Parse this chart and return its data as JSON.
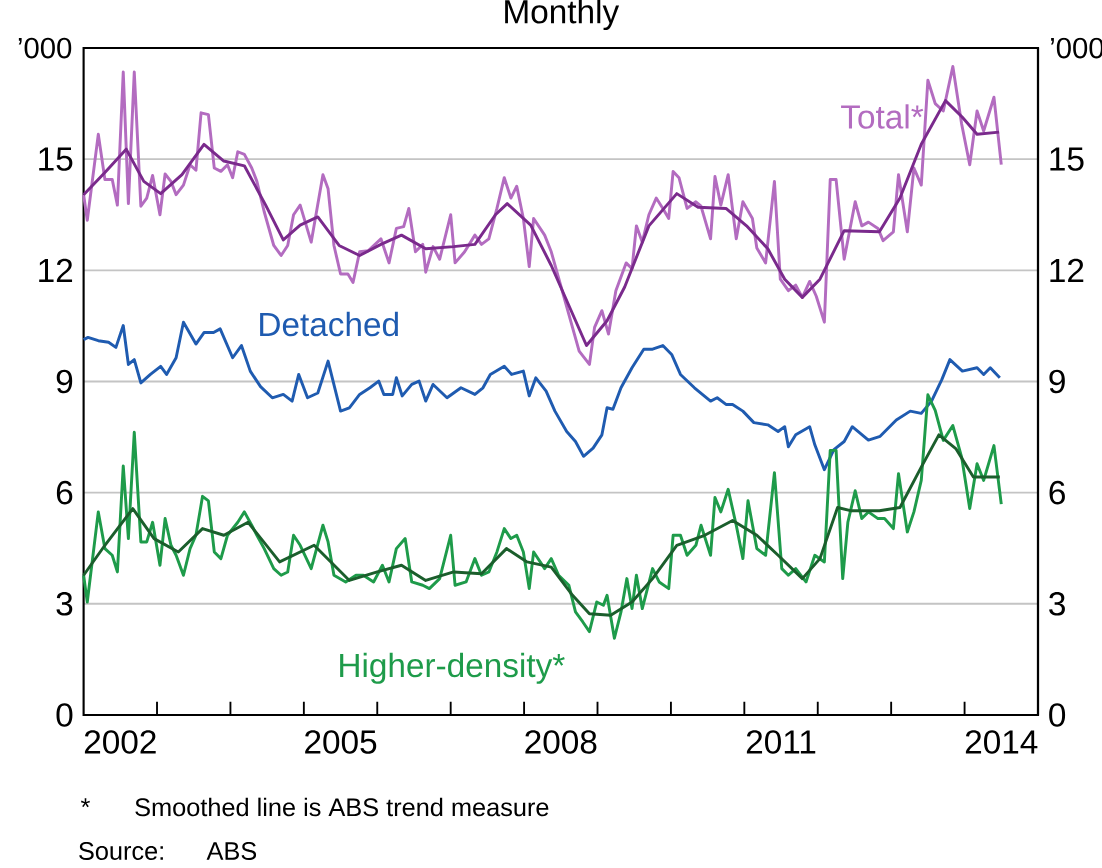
{
  "chart_data": {
    "type": "line",
    "title": "Monthly",
    "ylabel": "’000",
    "y2label": "’000",
    "xlim": [
      2002,
      2015
    ],
    "ylim": [
      0,
      18
    ],
    "y2lim": [
      0,
      18
    ],
    "xticks": [
      {
        "value": 2002.5,
        "label": "2002"
      },
      {
        "value": 2003,
        "label": null
      },
      {
        "value": 2004,
        "label": null
      },
      {
        "value": 2005,
        "label": null
      },
      {
        "value": 2005.5,
        "label": "2005"
      },
      {
        "value": 2006,
        "label": null
      },
      {
        "value": 2007,
        "label": null
      },
      {
        "value": 2008,
        "label": null
      },
      {
        "value": 2008.5,
        "label": "2008"
      },
      {
        "value": 2009,
        "label": null
      },
      {
        "value": 2010,
        "label": null
      },
      {
        "value": 2011,
        "label": null
      },
      {
        "value": 2011.5,
        "label": "2011"
      },
      {
        "value": 2012,
        "label": null
      },
      {
        "value": 2013,
        "label": null
      },
      {
        "value": 2014,
        "label": null
      },
      {
        "value": 2014.5,
        "label": "2014"
      }
    ],
    "yticks": [
      0,
      3,
      6,
      9,
      12,
      15
    ],
    "y2ticks": [
      0,
      3,
      6,
      9,
      12,
      15
    ],
    "grid": "y",
    "series": [
      {
        "name": "Total*",
        "color": "#b36cc0",
        "x": [
          2002.0,
          2002.05,
          2002.2,
          2002.29,
          2002.39,
          2002.46,
          2002.54,
          2002.61,
          2002.69,
          2002.78,
          2002.86,
          2002.94,
          2003.04,
          2003.11,
          2003.19,
          2003.26,
          2003.36,
          2003.45,
          2003.53,
          2003.6,
          2003.7,
          2003.78,
          2003.87,
          2003.96,
          2004.03,
          2004.1,
          2004.19,
          2004.29,
          2004.36,
          2004.46,
          2004.59,
          2004.69,
          2004.78,
          2004.86,
          2004.95,
          2005.1,
          2005.26,
          2005.33,
          2005.41,
          2005.5,
          2005.6,
          2005.67,
          2005.76,
          2005.88,
          2006.05,
          2006.16,
          2006.26,
          2006.36,
          2006.43,
          2006.52,
          2006.62,
          2006.66,
          2006.76,
          2006.85,
          2007.0,
          2007.06,
          2007.19,
          2007.33,
          2007.42,
          2007.52,
          2007.63,
          2007.73,
          2007.82,
          2007.9,
          2007.99,
          2008.07,
          2008.13,
          2008.28,
          2008.37,
          2008.75,
          2008.89,
          2008.96,
          2009.06,
          2009.15,
          2009.25,
          2009.39,
          2009.47,
          2009.53,
          2009.61,
          2009.7,
          2009.8,
          2009.89,
          2009.97,
          2010.03,
          2010.11,
          2010.22,
          2010.34,
          2010.41,
          2010.54,
          2010.6,
          2010.68,
          2010.78,
          2010.89,
          2010.98,
          2011.11,
          2011.17,
          2011.29,
          2011.41,
          2011.49,
          2011.6,
          2011.7,
          2011.79,
          2011.89,
          2011.98,
          2012.09,
          2012.17,
          2012.25,
          2012.36,
          2012.51,
          2012.6,
          2012.69,
          2012.82,
          2012.89,
          2013.03,
          2013.1,
          2013.22,
          2013.31,
          2013.41,
          2013.5,
          2013.6,
          2013.71,
          2013.84,
          2013.96,
          2014.07,
          2014.17,
          2014.26,
          2014.4,
          2014.5
        ],
        "values": [
          14.04,
          13.35,
          15.67,
          14.45,
          14.45,
          13.76,
          17.35,
          13.8,
          17.35,
          13.73,
          13.95,
          14.56,
          13.5,
          14.6,
          14.4,
          14.04,
          14.3,
          14.85,
          14.7,
          16.25,
          16.2,
          14.76,
          14.67,
          14.85,
          14.5,
          15.2,
          15.13,
          14.76,
          14.4,
          13.58,
          12.67,
          12.4,
          12.67,
          13.5,
          13.76,
          12.76,
          14.58,
          14.2,
          12.67,
          11.9,
          11.9,
          11.67,
          12.5,
          12.53,
          12.85,
          12.2,
          13.13,
          13.18,
          13.67,
          12.5,
          12.7,
          11.95,
          12.64,
          12.3,
          13.5,
          12.2,
          12.5,
          12.95,
          12.7,
          12.85,
          13.67,
          14.5,
          13.95,
          14.27,
          13.4,
          12.1,
          13.4,
          12.95,
          12.5,
          9.82,
          9.46,
          10.46,
          10.91,
          10.28,
          11.45,
          12.2,
          12.04,
          13.2,
          12.76,
          13.5,
          13.95,
          13.67,
          13.4,
          14.67,
          14.5,
          13.67,
          13.85,
          13.73,
          12.85,
          14.53,
          13.76,
          14.58,
          12.85,
          13.85,
          13.4,
          12.6,
          12.2,
          14.4,
          11.76,
          11.45,
          11.6,
          11.27,
          11.7,
          11.3,
          10.6,
          14.45,
          14.45,
          12.3,
          13.85,
          13.2,
          13.3,
          13.13,
          12.8,
          13.04,
          14.58,
          13.04,
          14.76,
          14.3,
          17.13,
          16.5,
          16.3,
          17.5,
          15.95,
          14.85,
          16.3,
          15.76,
          16.67,
          14.85
        ]
      },
      {
        "color": "#7a2a8c",
        "x": [
          2002.0,
          2002.29,
          2002.58,
          2002.82,
          2003.05,
          2003.34,
          2003.64,
          2003.91,
          2004.19,
          2004.48,
          2004.72,
          2004.95,
          2005.19,
          2005.48,
          2005.76,
          2006.05,
          2006.33,
          2006.66,
          2007.04,
          2007.33,
          2007.61,
          2007.77,
          2008.09,
          2008.37,
          2008.85,
          2009.13,
          2009.37,
          2009.7,
          2010.08,
          2010.37,
          2010.75,
          2011.03,
          2011.32,
          2011.55,
          2011.79,
          2012.03,
          2012.36,
          2012.84,
          2013.12,
          2013.41,
          2013.74,
          2013.97,
          2014.17,
          2014.47
        ],
        "values": [
          14.04,
          14.64,
          15.27,
          14.4,
          14.07,
          14.58,
          15.4,
          14.95,
          14.82,
          13.76,
          12.82,
          13.22,
          13.44,
          12.67,
          12.4,
          12.7,
          12.95,
          12.58,
          12.64,
          12.7,
          13.5,
          13.8,
          13.22,
          12.13,
          9.97,
          10.64,
          11.55,
          13.2,
          14.07,
          13.7,
          13.67,
          13.2,
          12.58,
          11.76,
          11.27,
          11.76,
          13.07,
          13.04,
          13.95,
          15.4,
          16.58,
          16.13,
          15.67,
          15.73
        ]
      },
      {
        "name": "Detached",
        "color": "#1f5bb0",
        "x": [
          2002.0,
          2002.06,
          2002.2,
          2002.34,
          2002.44,
          2002.54,
          2002.61,
          2002.69,
          2002.78,
          2002.91,
          2003.05,
          2003.13,
          2003.26,
          2003.36,
          2003.53,
          2003.64,
          2003.77,
          2003.86,
          2004.03,
          2004.15,
          2004.27,
          2004.41,
          2004.57,
          2004.72,
          2004.84,
          2004.93,
          2005.05,
          2005.19,
          2005.33,
          2005.5,
          2005.62,
          2005.76,
          2005.9,
          2006.02,
          2006.09,
          2006.21,
          2006.26,
          2006.34,
          2006.47,
          2006.57,
          2006.66,
          2006.76,
          2006.95,
          2007.14,
          2007.33,
          2007.44,
          2007.54,
          2007.73,
          2007.83,
          2007.99,
          2008.07,
          2008.16,
          2008.3,
          2008.42,
          2008.58,
          2008.7,
          2008.81,
          2008.94,
          2009.06,
          2009.13,
          2009.21,
          2009.32,
          2009.47,
          2009.63,
          2009.75,
          2009.89,
          2010.01,
          2010.13,
          2010.32,
          2010.54,
          2010.63,
          2010.75,
          2010.84,
          2010.98,
          2011.13,
          2011.32,
          2011.46,
          2011.55,
          2011.6,
          2011.7,
          2011.89,
          2011.96,
          2012.09,
          2012.22,
          2012.36,
          2012.47,
          2012.69,
          2012.85,
          2013.07,
          2013.26,
          2013.41,
          2013.55,
          2013.69,
          2013.8,
          2013.97,
          2014.17,
          2014.26,
          2014.35,
          2014.48
        ],
        "values": [
          10.13,
          10.19,
          10.1,
          10.06,
          9.92,
          10.51,
          9.46,
          9.59,
          8.96,
          9.19,
          9.41,
          9.19,
          9.64,
          10.6,
          10.01,
          10.32,
          10.32,
          10.42,
          9.64,
          9.97,
          9.28,
          8.86,
          8.56,
          8.65,
          8.47,
          9.19,
          8.56,
          8.69,
          9.55,
          8.2,
          8.29,
          8.65,
          8.83,
          9.01,
          8.65,
          8.65,
          9.1,
          8.61,
          8.92,
          9.01,
          8.47,
          8.92,
          8.56,
          8.83,
          8.65,
          8.83,
          9.19,
          9.41,
          9.19,
          9.28,
          8.61,
          9.1,
          8.74,
          8.2,
          7.65,
          7.38,
          6.98,
          7.2,
          7.56,
          8.29,
          8.25,
          8.83,
          9.37,
          9.87,
          9.87,
          9.97,
          9.73,
          9.19,
          8.83,
          8.47,
          8.56,
          8.38,
          8.38,
          8.2,
          7.89,
          7.83,
          7.65,
          7.78,
          7.24,
          7.56,
          7.78,
          7.29,
          6.62,
          7.16,
          7.38,
          7.78,
          7.42,
          7.52,
          7.96,
          8.2,
          8.14,
          8.47,
          9.05,
          9.59,
          9.28,
          9.37,
          9.19,
          9.37,
          9.1
        ]
      },
      {
        "name": "Higher-density*",
        "color": "#1e9b4a",
        "x": [
          2002.0,
          2002.05,
          2002.2,
          2002.29,
          2002.39,
          2002.46,
          2002.54,
          2002.61,
          2002.69,
          2002.78,
          2002.86,
          2002.94,
          2003.04,
          2003.11,
          2003.19,
          2003.26,
          2003.36,
          2003.45,
          2003.53,
          2003.62,
          2003.7,
          2003.78,
          2003.87,
          2003.96,
          2004.1,
          2004.19,
          2004.29,
          2004.36,
          2004.46,
          2004.59,
          2004.69,
          2004.78,
          2004.86,
          2004.95,
          2005.1,
          2005.26,
          2005.33,
          2005.41,
          2005.57,
          2005.71,
          2005.81,
          2005.95,
          2006.07,
          2006.16,
          2006.26,
          2006.38,
          2006.47,
          2006.62,
          2006.71,
          2006.85,
          2007.0,
          2007.06,
          2007.21,
          2007.33,
          2007.42,
          2007.52,
          2007.63,
          2007.73,
          2007.82,
          2007.9,
          2007.99,
          2008.07,
          2008.13,
          2008.28,
          2008.37,
          2008.47,
          2008.61,
          2008.7,
          2008.8,
          2008.89,
          2008.99,
          2009.08,
          2009.13,
          2009.23,
          2009.32,
          2009.4,
          2009.47,
          2009.53,
          2009.61,
          2009.75,
          2009.84,
          2009.97,
          2010.03,
          2010.13,
          2010.22,
          2010.34,
          2010.41,
          2010.54,
          2010.6,
          2010.68,
          2010.78,
          2010.89,
          2010.98,
          2011.05,
          2011.17,
          2011.29,
          2011.41,
          2011.51,
          2011.6,
          2011.7,
          2011.84,
          2011.96,
          2012.09,
          2012.17,
          2012.25,
          2012.34,
          2012.41,
          2012.51,
          2012.6,
          2012.69,
          2012.82,
          2012.91,
          2013.03,
          2013.1,
          2013.22,
          2013.31,
          2013.41,
          2013.5,
          2013.6,
          2013.71,
          2013.84,
          2013.96,
          2014.07,
          2014.17,
          2014.26,
          2014.4,
          2014.5
        ],
        "values": [
          3.77,
          3.05,
          5.48,
          4.49,
          4.31,
          3.86,
          6.72,
          4.76,
          7.63,
          4.67,
          4.67,
          5.2,
          4.04,
          5.3,
          4.58,
          4.31,
          3.77,
          4.49,
          4.85,
          5.9,
          5.78,
          4.4,
          4.22,
          4.85,
          5.2,
          5.48,
          5.12,
          4.85,
          4.49,
          3.95,
          3.77,
          3.86,
          4.85,
          4.58,
          3.95,
          5.12,
          4.67,
          3.77,
          3.59,
          3.77,
          3.77,
          3.59,
          4.04,
          3.59,
          4.49,
          4.76,
          3.59,
          3.5,
          3.41,
          3.68,
          4.85,
          3.5,
          3.59,
          4.22,
          3.77,
          3.86,
          4.4,
          5.03,
          4.76,
          4.85,
          4.4,
          3.41,
          4.4,
          3.95,
          4.22,
          3.77,
          3.5,
          2.78,
          2.51,
          2.25,
          3.05,
          2.96,
          3.23,
          2.07,
          2.78,
          3.68,
          2.87,
          3.77,
          2.87,
          3.95,
          3.59,
          3.41,
          4.85,
          4.85,
          4.31,
          4.58,
          5.12,
          4.31,
          5.87,
          5.48,
          6.09,
          5.12,
          4.22,
          5.78,
          4.49,
          4.31,
          6.54,
          3.95,
          3.77,
          3.95,
          3.59,
          4.31,
          4.13,
          7.14,
          7.14,
          3.68,
          5.2,
          6.05,
          5.3,
          5.48,
          5.3,
          5.3,
          5.03,
          6.51,
          4.94,
          5.48,
          6.33,
          8.64,
          8.22,
          7.41,
          7.81,
          6.96,
          5.57,
          6.78,
          6.33,
          7.27,
          5.69
        ]
      },
      {
        "color": "#1b5e2c",
        "x": [
          2002.0,
          2002.29,
          2002.67,
          2002.96,
          2003.29,
          2003.62,
          2003.91,
          2004.24,
          2004.67,
          2005.14,
          2005.62,
          2006.0,
          2006.33,
          2006.66,
          2007.04,
          2007.42,
          2007.76,
          2008.04,
          2008.37,
          2008.66,
          2008.89,
          2009.18,
          2009.47,
          2009.75,
          2010.08,
          2010.46,
          2010.84,
          2011.17,
          2011.46,
          2011.79,
          2012.03,
          2012.27,
          2012.46,
          2012.84,
          2013.12,
          2013.41,
          2013.65,
          2013.88,
          2014.12,
          2014.48
        ],
        "values": [
          3.77,
          4.58,
          5.57,
          4.76,
          4.4,
          5.03,
          4.85,
          5.2,
          4.13,
          4.58,
          3.63,
          3.86,
          4.04,
          3.63,
          3.86,
          3.81,
          4.49,
          4.13,
          3.99,
          3.23,
          2.73,
          2.69,
          3.05,
          3.68,
          4.58,
          4.85,
          5.25,
          4.85,
          4.31,
          3.68,
          4.22,
          5.6,
          5.51,
          5.51,
          5.6,
          6.69,
          7.56,
          7.19,
          6.42,
          6.42
        ]
      }
    ],
    "annotations": [
      "*",
      "Smoothed line is ABS trend measure",
      "Source:",
      "ABS"
    ]
  }
}
